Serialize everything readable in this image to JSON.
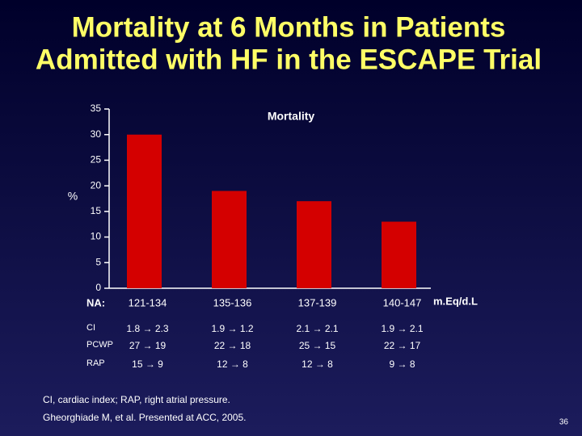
{
  "chart_data": {
    "type": "bar",
    "title": [
      "Mortality at 6 Months in Patients",
      "Admitted with HF in the ESCAPE Trial"
    ],
    "y_label": "%",
    "x_label": "NA:",
    "x_unit": "m.Eq/d.L",
    "categories": [
      "121-134",
      "135-136",
      "137-139",
      "140-147"
    ],
    "series": [
      {
        "name": "Mortality",
        "color": "#d40000",
        "values": [
          30,
          19,
          17,
          13
        ]
      }
    ],
    "ylim": [
      0,
      35
    ],
    "yticks": [
      0,
      5,
      10,
      15,
      20,
      25,
      30,
      35
    ]
  },
  "table": {
    "rows": [
      {
        "label": "CI",
        "values": [
          "1.8 → 2.3",
          "1.9 → 1.2",
          "2.1 → 2.1",
          "1.9 → 2.1"
        ]
      },
      {
        "label": "PCWP",
        "values": [
          "27 → 19",
          "22 → 18",
          "25 → 15",
          "22 → 17"
        ]
      },
      {
        "label": "RAP",
        "values": [
          "15 → 9",
          "12 → 8",
          "12 → 8",
          "9 → 8"
        ]
      }
    ]
  },
  "footnote": "CI, cardiac index; RAP, right atrial pressure.",
  "source": "Gheorghiade M, et al. Presented at ACC, 2005.",
  "page_number": "36"
}
